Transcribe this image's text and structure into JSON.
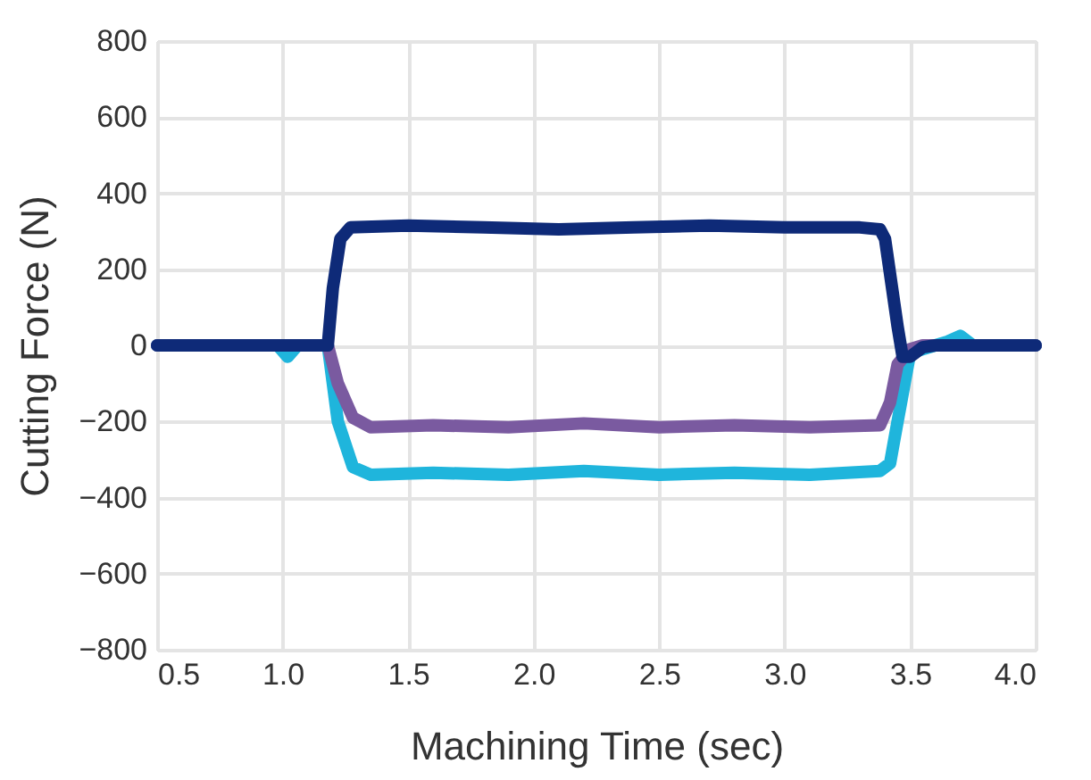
{
  "chart_data": {
    "type": "line",
    "xlabel": "Machining Time (sec)",
    "ylabel": "Cutting Force (N)",
    "xlim": [
      0.5,
      4.0
    ],
    "ylim": [
      -800,
      800
    ],
    "xticks": [
      {
        "value": 0.5,
        "label": "0.5"
      },
      {
        "value": 1.0,
        "label": "1.0"
      },
      {
        "value": 1.5,
        "label": "1.5"
      },
      {
        "value": 2.0,
        "label": "2.0"
      },
      {
        "value": 2.5,
        "label": "2.5"
      },
      {
        "value": 3.0,
        "label": "3.0"
      },
      {
        "value": 3.5,
        "label": "3.5"
      },
      {
        "value": 4.0,
        "label": "4.0"
      }
    ],
    "yticks": [
      -800,
      -600,
      -400,
      -200,
      0,
      200,
      400,
      600,
      800
    ],
    "grid": true,
    "legend": false,
    "marker": "none",
    "line_style": "solid",
    "series": [
      {
        "color": "#1fb5dc",
        "x": [
          0.5,
          0.98,
          1.02,
          1.06,
          1.18,
          1.22,
          1.28,
          1.35,
          1.6,
          1.9,
          2.2,
          2.5,
          2.8,
          3.1,
          3.38,
          3.42,
          3.45,
          3.5,
          3.6,
          3.65,
          3.7,
          3.75,
          4.0
        ],
        "values": [
          0,
          0,
          -30,
          0,
          0,
          -200,
          -320,
          -340,
          -335,
          -340,
          -330,
          -340,
          -335,
          -340,
          -330,
          -310,
          -200,
          -20,
          0,
          10,
          25,
          0,
          0
        ]
      },
      {
        "color": "#7a5aa0",
        "x": [
          0.5,
          1.18,
          1.22,
          1.28,
          1.35,
          1.6,
          1.9,
          2.2,
          2.5,
          2.8,
          3.1,
          3.38,
          3.42,
          3.45,
          3.5,
          3.55,
          4.0
        ],
        "values": [
          0,
          0,
          -100,
          -190,
          -215,
          -210,
          -215,
          -205,
          -215,
          -210,
          -215,
          -210,
          -150,
          -50,
          -10,
          0,
          0
        ]
      },
      {
        "color": "#0e2a78",
        "x": [
          0.5,
          1.18,
          1.2,
          1.23,
          1.27,
          1.5,
          1.8,
          2.1,
          2.4,
          2.7,
          3.0,
          3.3,
          3.38,
          3.4,
          3.45,
          3.47,
          3.5,
          3.55,
          3.6,
          4.0
        ],
        "values": [
          0,
          0,
          150,
          280,
          310,
          315,
          310,
          305,
          310,
          315,
          310,
          310,
          305,
          280,
          50,
          -30,
          -30,
          -5,
          0,
          0
        ]
      }
    ]
  }
}
